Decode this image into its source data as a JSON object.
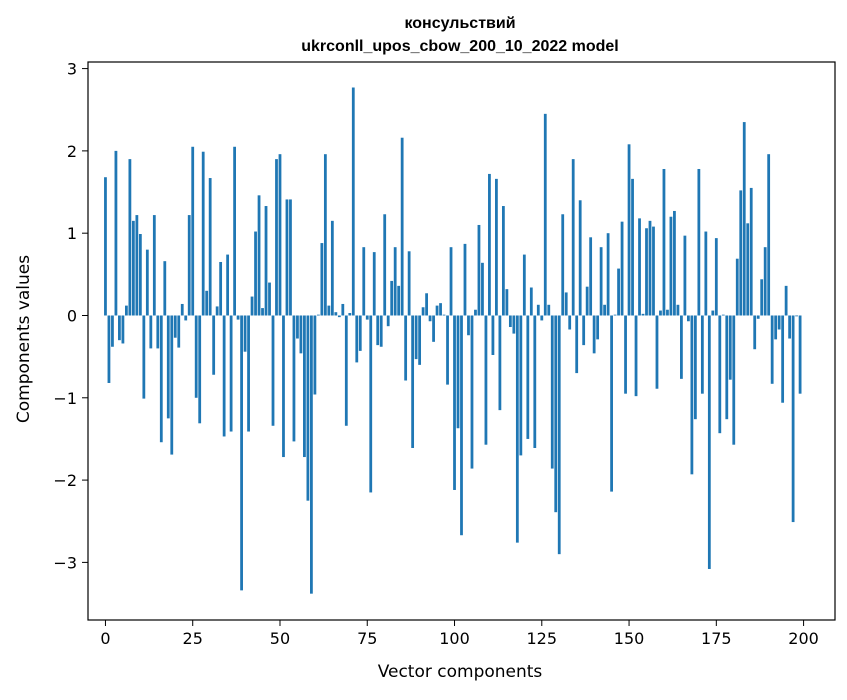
{
  "chart_data": {
    "type": "bar",
    "title_line1": "консульствий",
    "title_line2": "ukrconll_upos_cbow_200_10_2022 model",
    "xlabel": "Vector components",
    "ylabel": "Components values",
    "xlim": [
      -5,
      209
    ],
    "ylim": [
      -3.7,
      3.08
    ],
    "xticks": [
      0,
      25,
      50,
      75,
      100,
      125,
      150,
      175,
      200
    ],
    "yticks": [
      -3,
      -2,
      -1,
      0,
      1,
      2,
      3
    ],
    "ytick_labels": [
      "−3",
      "−2",
      "−1",
      "0",
      "1",
      "2",
      "3"
    ],
    "bar_color": "#1f77b4",
    "grid": false,
    "values": [
      1.68,
      -0.82,
      -0.38,
      2.0,
      -0.3,
      -0.34,
      0.12,
      1.9,
      1.15,
      1.22,
      0.99,
      -1.01,
      0.8,
      -0.4,
      1.22,
      -0.4,
      -1.54,
      0.66,
      -1.25,
      -1.69,
      -0.27,
      -0.39,
      0.14,
      -0.06,
      1.22,
      2.05,
      -1.0,
      -1.31,
      1.99,
      0.3,
      1.67,
      -0.72,
      0.11,
      0.65,
      -1.47,
      0.74,
      -1.41,
      2.05,
      -0.05,
      -3.34,
      -0.44,
      -1.41,
      0.23,
      1.02,
      1.46,
      0.09,
      1.33,
      0.4,
      -1.34,
      1.9,
      1.96,
      -1.72,
      1.41,
      1.41,
      -1.53,
      -0.28,
      -0.46,
      -1.72,
      -2.25,
      -3.38,
      -0.96,
      0.01,
      0.88,
      1.96,
      0.12,
      1.15,
      0.04,
      -0.02,
      0.14,
      -1.34,
      0.03,
      2.77,
      -0.57,
      -0.43,
      0.83,
      -0.05,
      -2.15,
      0.77,
      -0.36,
      -0.38,
      1.23,
      -0.13,
      0.42,
      0.83,
      0.36,
      2.16,
      -0.79,
      0.78,
      -1.61,
      -0.53,
      -0.6,
      0.1,
      0.27,
      -0.07,
      -0.32,
      0.12,
      0.15,
      0.01,
      -0.84,
      0.83,
      -2.12,
      -1.37,
      -2.67,
      0.87,
      -0.24,
      -1.86,
      0.07,
      1.1,
      0.64,
      -1.57,
      1.72,
      -0.48,
      1.66,
      -1.15,
      1.33,
      0.32,
      -0.14,
      -0.22,
      -2.76,
      -1.7,
      0.74,
      -1.5,
      0.34,
      -1.61,
      0.13,
      -0.06,
      2.45,
      0.13,
      -1.86,
      -2.39,
      -2.9,
      1.23,
      0.28,
      -0.17,
      1.9,
      -0.7,
      1.4,
      -0.36,
      0.35,
      0.95,
      -0.46,
      -0.29,
      0.83,
      0.13,
      1.0,
      -2.14,
      0.01,
      0.57,
      1.14,
      -0.95,
      2.08,
      1.66,
      -0.98,
      1.18,
      0.02,
      1.06,
      1.15,
      1.08,
      -0.89,
      0.06,
      1.78,
      0.07,
      1.2,
      1.27,
      0.13,
      -0.77,
      0.97,
      -0.07,
      -1.93,
      -1.26,
      1.78,
      -0.95,
      1.02,
      -3.08,
      0.06,
      0.94,
      -1.43,
      0.01,
      -1.26,
      -0.78,
      -1.57,
      0.69,
      1.52,
      2.35,
      1.12,
      1.55,
      -0.41,
      -0.04,
      0.44,
      0.83,
      1.96,
      -0.83,
      -0.29,
      -0.17,
      -1.06,
      0.36,
      -0.28,
      -2.51,
      -0.01,
      -0.95
    ]
  }
}
